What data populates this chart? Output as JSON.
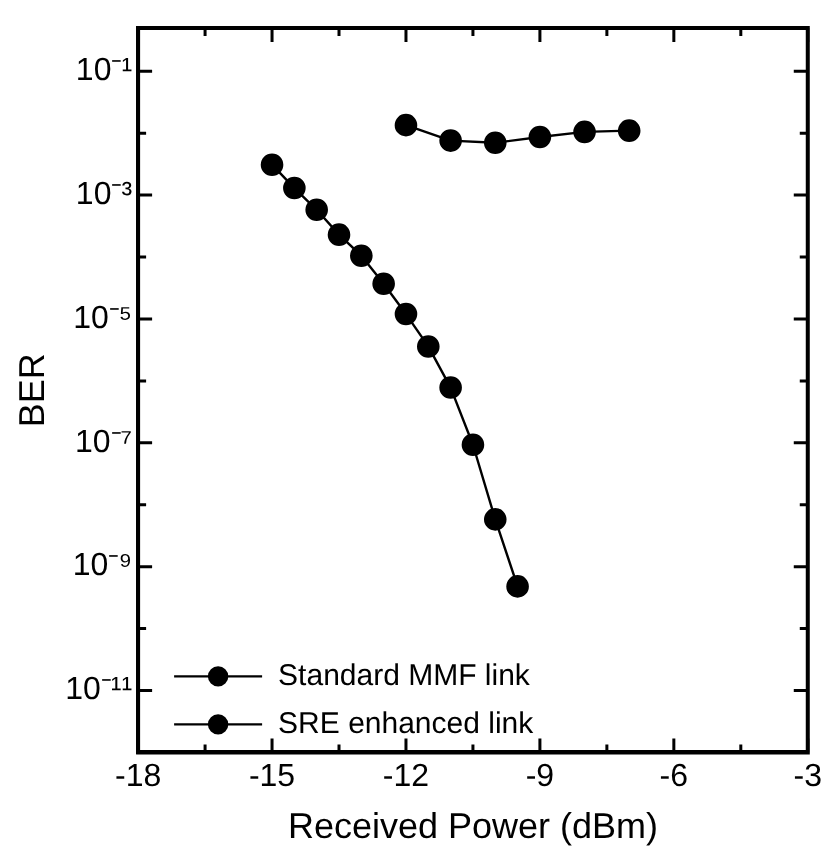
{
  "chart_data": {
    "type": "line",
    "xlabel": "Received Power (dBm)",
    "ylabel": "BER",
    "log": "y",
    "grid": false,
    "legend": "bottom left",
    "marker": "circle",
    "line_style": "solid",
    "xlim": [
      -18,
      -3
    ],
    "xticks": [
      -18,
      {
        "value": -16.5,
        "label": null
      },
      -15,
      {
        "value": -13.5,
        "label": null
      },
      -12,
      {
        "value": -10.5,
        "label": null
      },
      -9,
      {
        "value": -7.5,
        "label": null
      },
      -6,
      {
        "value": -4.5,
        "label": null
      },
      -3
    ],
    "ylim": [
      1e-12,
      0.5
    ],
    "yticks": [
      {
        "value": 1e-12,
        "label": null
      },
      {
        "value": 1e-11,
        "label": "10⁻¹¹"
      },
      {
        "value": 1e-10,
        "label": null
      },
      {
        "value": 1e-09,
        "label": "10⁻⁹"
      },
      {
        "value": 1e-08,
        "label": null
      },
      {
        "value": 1e-07,
        "label": "10⁻⁷"
      },
      {
        "value": 1e-06,
        "label": null
      },
      {
        "value": 1e-05,
        "label": "10⁻⁵"
      },
      {
        "value": 0.0001,
        "label": null
      },
      {
        "value": 0.001,
        "label": "10⁻³"
      },
      {
        "value": 0.01,
        "label": null
      },
      {
        "value": 0.1,
        "label": "10⁻¹"
      }
    ],
    "series": [
      {
        "name": "Standard MMF link",
        "color": "#000000",
        "x": [
          -12,
          -11,
          -10,
          -9,
          -8,
          -7
        ],
        "values": [
          0.0135,
          0.0076,
          0.007,
          0.0087,
          0.0105,
          0.011
        ]
      },
      {
        "name": "SRE enhanced link",
        "color": "#000000",
        "x": [
          -15,
          -14.5,
          -14,
          -13.5,
          -13,
          -12.5,
          -12,
          -11.5,
          -11,
          -10.5,
          -10,
          -9.5
        ],
        "values": [
          0.0031,
          0.0013,
          0.00058,
          0.00023,
          0.000105,
          3.7e-05,
          1.2e-05,
          3.6e-06,
          7.8e-07,
          9.3e-08,
          5.8e-09,
          4.8e-10
        ]
      }
    ]
  }
}
